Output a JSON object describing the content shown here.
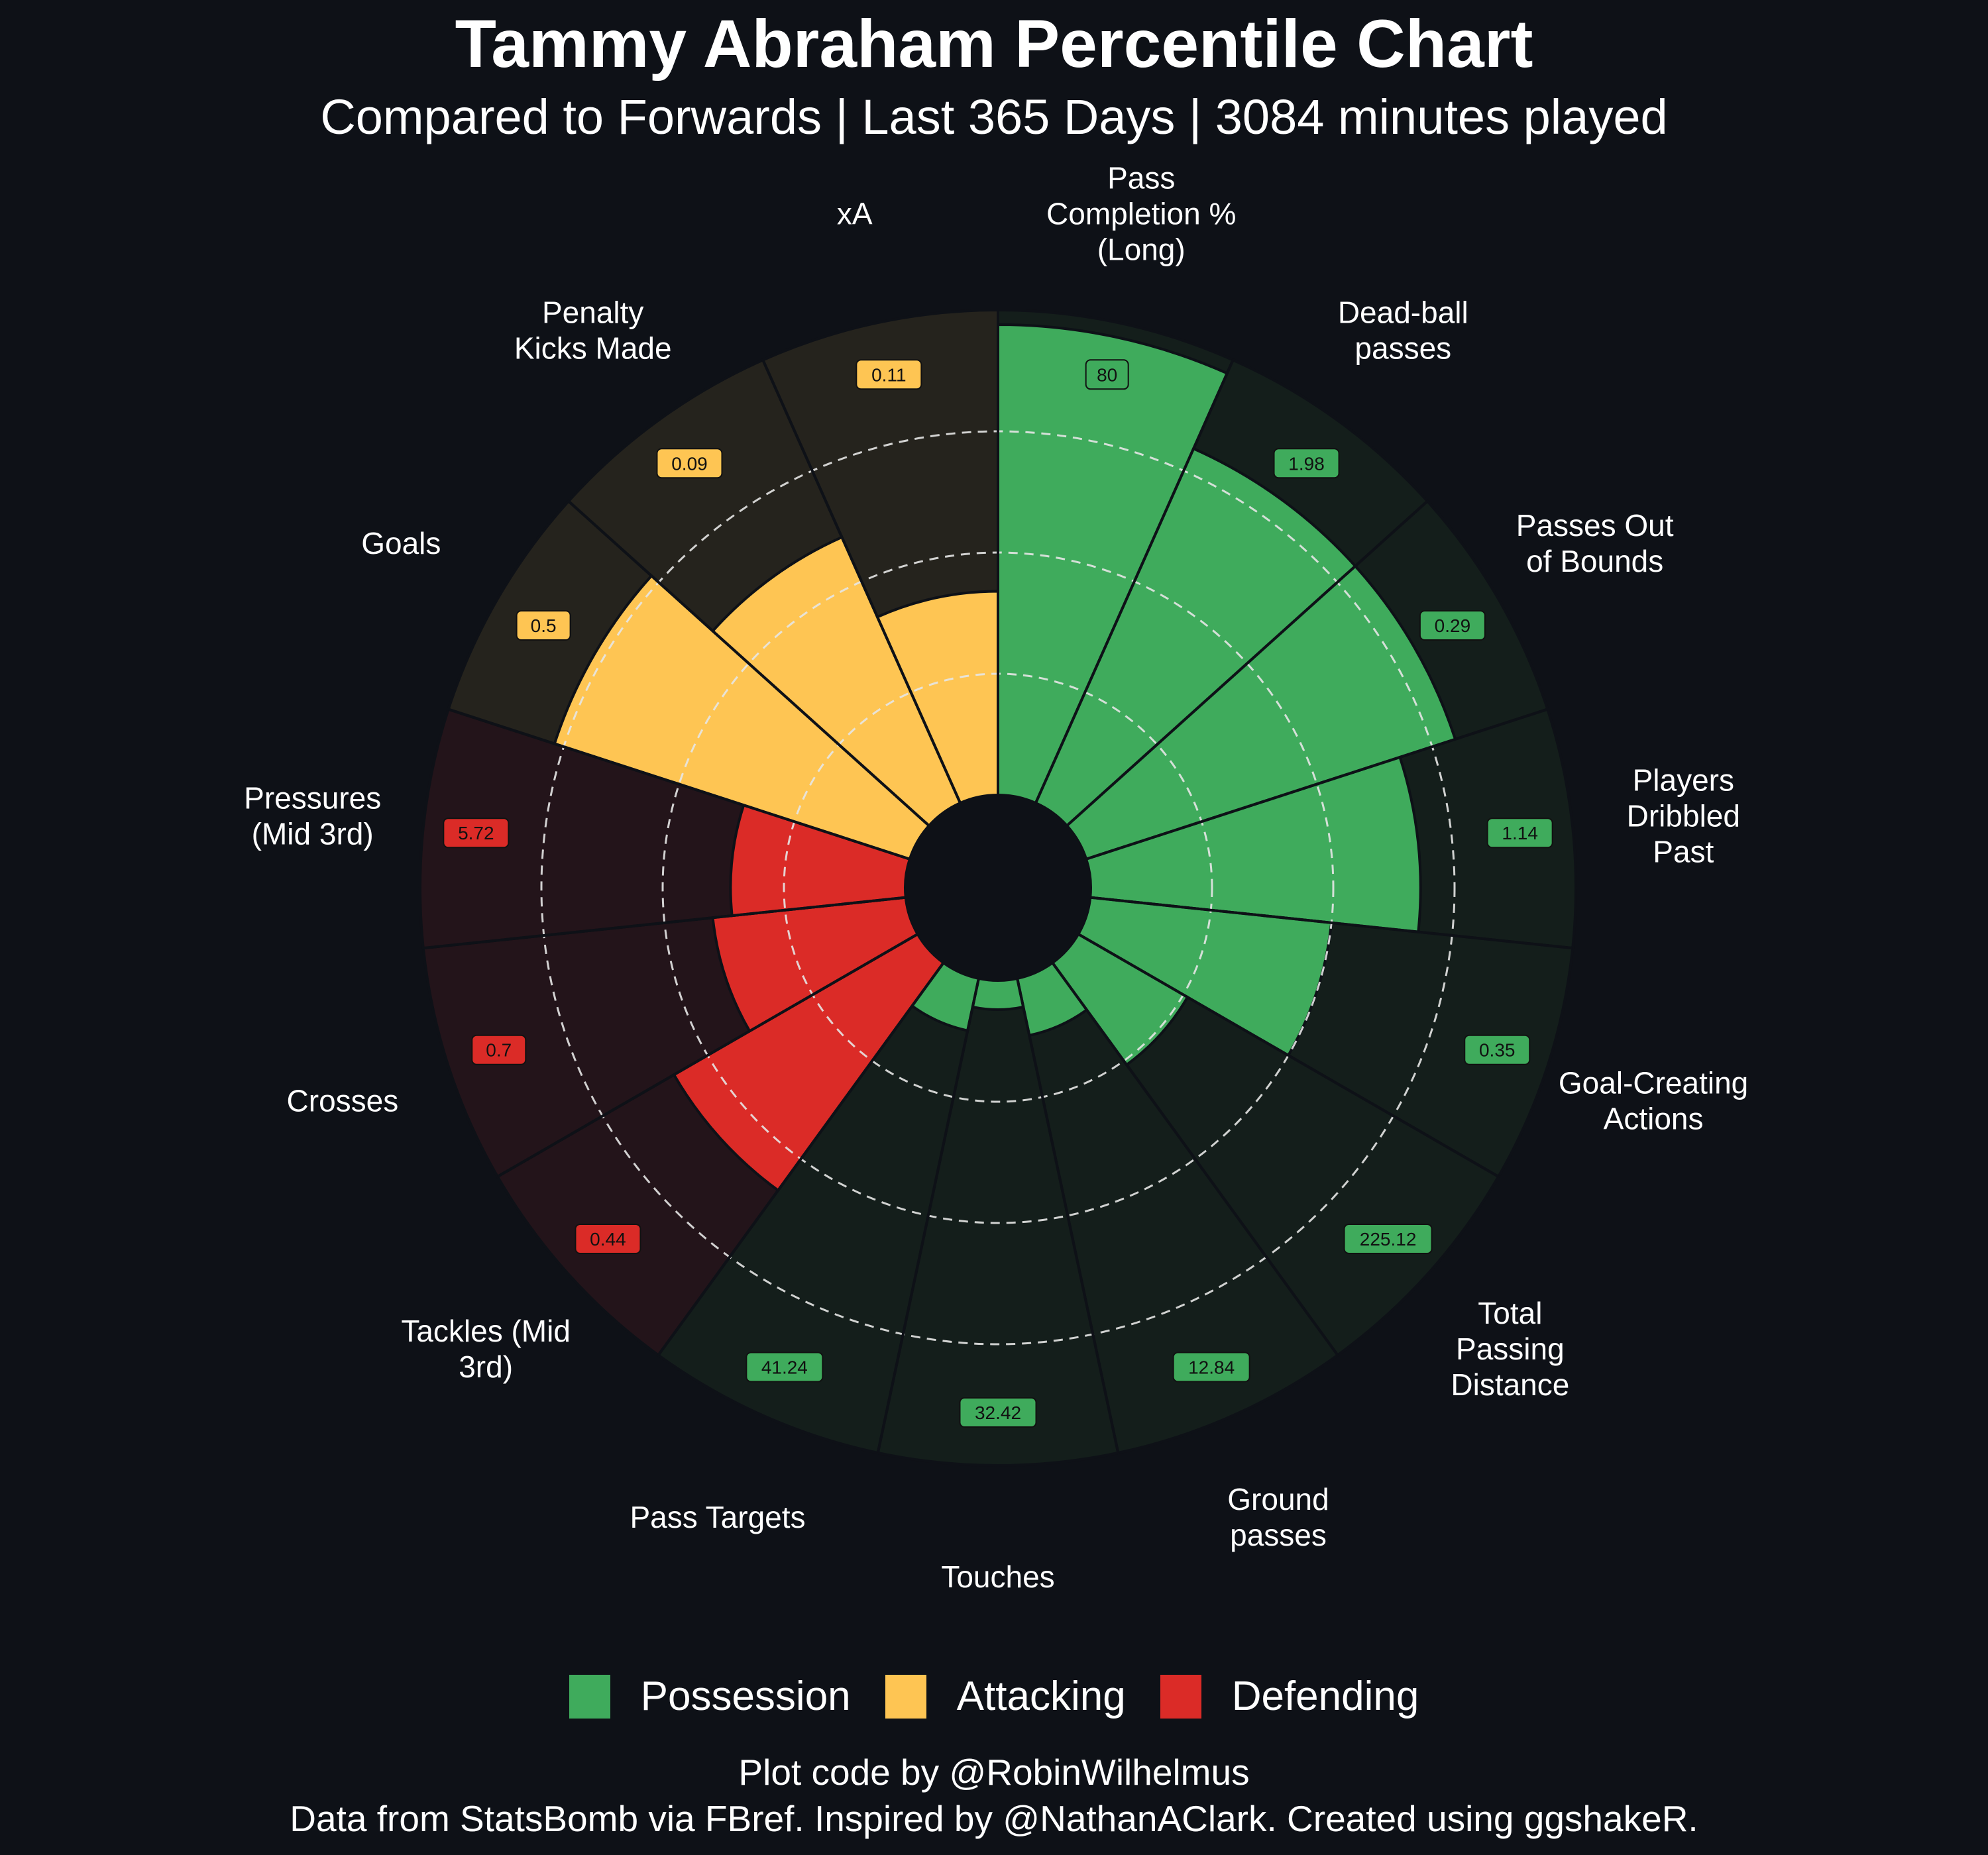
{
  "title": "Tammy Abraham Percentile Chart",
  "subtitle": "Compared to Forwards | Last 365 Days | 3084 minutes played",
  "legend": [
    {
      "label": "Possession",
      "color": "#3fab5c"
    },
    {
      "label": "Attacking",
      "color": "#fec553"
    },
    {
      "label": "Defending",
      "color": "#db2b27"
    }
  ],
  "caption": {
    "line1": "Plot code by @RobinWilhelmus",
    "line2": "Data from StatsBomb via FBref. Inspired by @NathanAClark. Created using ggshakeR."
  },
  "chart_data": {
    "type": "polar-bar",
    "value_axis": "percentile",
    "rlim": [
      0,
      100
    ],
    "gridlines": [
      25,
      50,
      75
    ],
    "segments": [
      {
        "label": "Pass Completion % (Long)",
        "group": "Possession",
        "value": 80,
        "percentile": 97
      },
      {
        "label": "Dead-ball passes",
        "group": "Possession",
        "value": 1.98,
        "percentile": 80
      },
      {
        "label": "Passes Out of Bounds",
        "group": "Possession",
        "value": 0.29,
        "percentile": 80
      },
      {
        "label": "Players Dribbled Past",
        "group": "Possession",
        "value": 1.14,
        "percentile": 68
      },
      {
        "label": "Goal-Creating Actions",
        "group": "Possession",
        "value": 0.35,
        "percentile": 50
      },
      {
        "label": "Total Passing Distance",
        "group": "Possession",
        "value": 225.12,
        "percentile": 26
      },
      {
        "label": "Ground passes",
        "group": "Possession",
        "value": 12.84,
        "percentile": 12
      },
      {
        "label": "Touches",
        "group": "Possession",
        "value": 32.42,
        "percentile": 6
      },
      {
        "label": "Pass Targets",
        "group": "Possession",
        "value": 41.24,
        "percentile": 11
      },
      {
        "label": "Tackles (Mid 3rd)",
        "group": "Defending",
        "value": 0.44,
        "percentile": 58
      },
      {
        "label": "Crosses",
        "group": "Defending",
        "value": 0.7,
        "percentile": 40
      },
      {
        "label": "Pressures (Mid 3rd)",
        "group": "Defending",
        "value": 5.72,
        "percentile": 36
      },
      {
        "label": "Goals",
        "group": "Attacking",
        "value": 0.5,
        "percentile": 77
      },
      {
        "label": "Penalty Kicks Made",
        "group": "Attacking",
        "value": 0.09,
        "percentile": 60
      },
      {
        "label": "xA",
        "group": "Attacking",
        "value": 0.11,
        "percentile": 42
      }
    ]
  }
}
